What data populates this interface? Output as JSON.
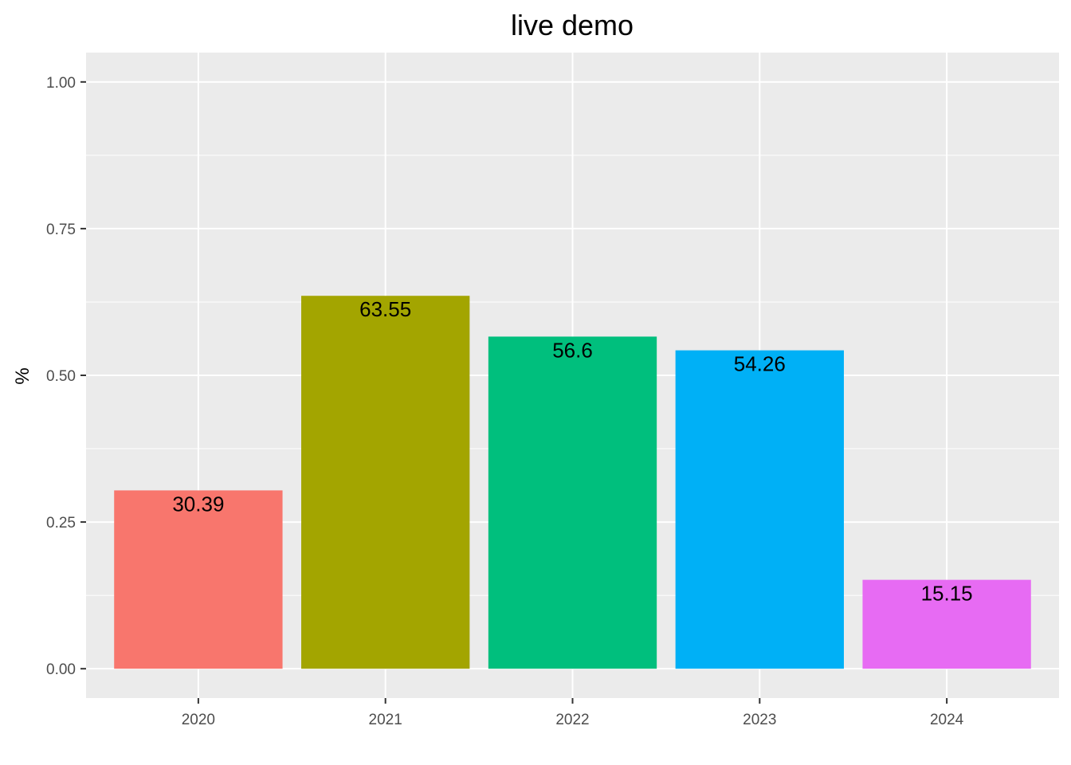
{
  "chart_data": {
    "type": "bar",
    "title": "live demo",
    "xlabel": "",
    "ylabel": "%",
    "categories": [
      "2020",
      "2021",
      "2022",
      "2023",
      "2024"
    ],
    "values": [
      0.3039,
      0.6355,
      0.566,
      0.5426,
      0.1515
    ],
    "data_labels": [
      "30.39",
      "63.55",
      "56.6",
      "54.26",
      "15.15"
    ],
    "colors": [
      "#F8766D",
      "#A3A500",
      "#00BF7D",
      "#00B0F6",
      "#E76BF3"
    ],
    "ylim": [
      -0.05,
      1.05
    ],
    "yticks": [
      0,
      0.25,
      0.5,
      0.75,
      1.0
    ],
    "ytick_labels": [
      "0.00",
      "0.25",
      "0.50",
      "0.75",
      "1.00"
    ],
    "yminor": [
      0.125,
      0.375,
      0.625,
      0.875
    ],
    "panel_background": "#EBEBEB",
    "grid_color": "#FFFFFF",
    "grid": true,
    "legend": "none"
  }
}
